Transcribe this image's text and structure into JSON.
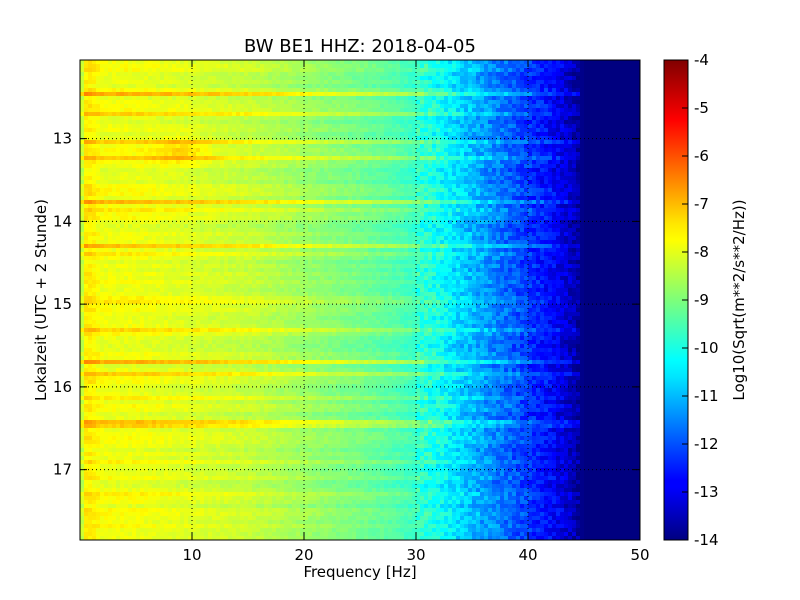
{
  "chart_data": {
    "type": "heatmap",
    "title": "BW BE1 HHZ: 2018-04-05",
    "xlabel": "Frequency [Hz]",
    "ylabel": "Lokalzeit (UTC + 2 Stunde)",
    "xlim": [
      0,
      50
    ],
    "ylim": [
      12.05,
      17.85
    ],
    "y_inverted": true,
    "x_ticks": [
      "10",
      "20",
      "30",
      "40",
      "50"
    ],
    "y_ticks": [
      "13",
      "14",
      "15",
      "16",
      "17"
    ],
    "grid": true,
    "colorbar": {
      "label": "Log10(Sqrt(m**2/s**2/Hz))",
      "range": [
        -14,
        -4
      ],
      "ticks": [
        "-4",
        "-5",
        "-6",
        "-7",
        "-8",
        "-9",
        "-10",
        "-11",
        "-12",
        "-13",
        "-14"
      ],
      "colormap": "jet"
    },
    "frequency_profile_hz": [
      0,
      0.5,
      1,
      2,
      5,
      10,
      15,
      20,
      25,
      28,
      30,
      32,
      34,
      36,
      38,
      40,
      42,
      44,
      45,
      50
    ],
    "frequency_profile_value": [
      -8.7,
      -7.6,
      -7.6,
      -7.9,
      -7.9,
      -8.1,
      -8.3,
      -8.7,
      -9.1,
      -9.4,
      -9.7,
      -10.1,
      -10.7,
      -11.2,
      -11.7,
      -12.2,
      -12.7,
      -13.4,
      -14,
      -14
    ],
    "bands": [
      {
        "time": 12.45,
        "delta": 0.8
      },
      {
        "time": 12.7,
        "delta": 0.7
      },
      {
        "time": 13.05,
        "delta": 0.5
      },
      {
        "time": 13.25,
        "delta": 0.8
      },
      {
        "time": 13.75,
        "delta": 0.9
      },
      {
        "time": 13.85,
        "delta": 0.5
      },
      {
        "time": 14.3,
        "delta": 0.8
      },
      {
        "time": 14.4,
        "delta": 0.5
      },
      {
        "time": 14.95,
        "delta": 0.4
      },
      {
        "time": 15.3,
        "delta": 0.4
      },
      {
        "time": 15.7,
        "delta": 1.0
      },
      {
        "time": 15.85,
        "delta": 0.6
      },
      {
        "time": 16.15,
        "delta": 0.5
      },
      {
        "time": 16.45,
        "delta": 0.7
      },
      {
        "time": 16.9,
        "delta": 0.4
      },
      {
        "time": 17.3,
        "delta": 0.4
      }
    ],
    "hotspot": {
      "freq": 9,
      "time": 13.15,
      "delta": 0.6
    }
  }
}
